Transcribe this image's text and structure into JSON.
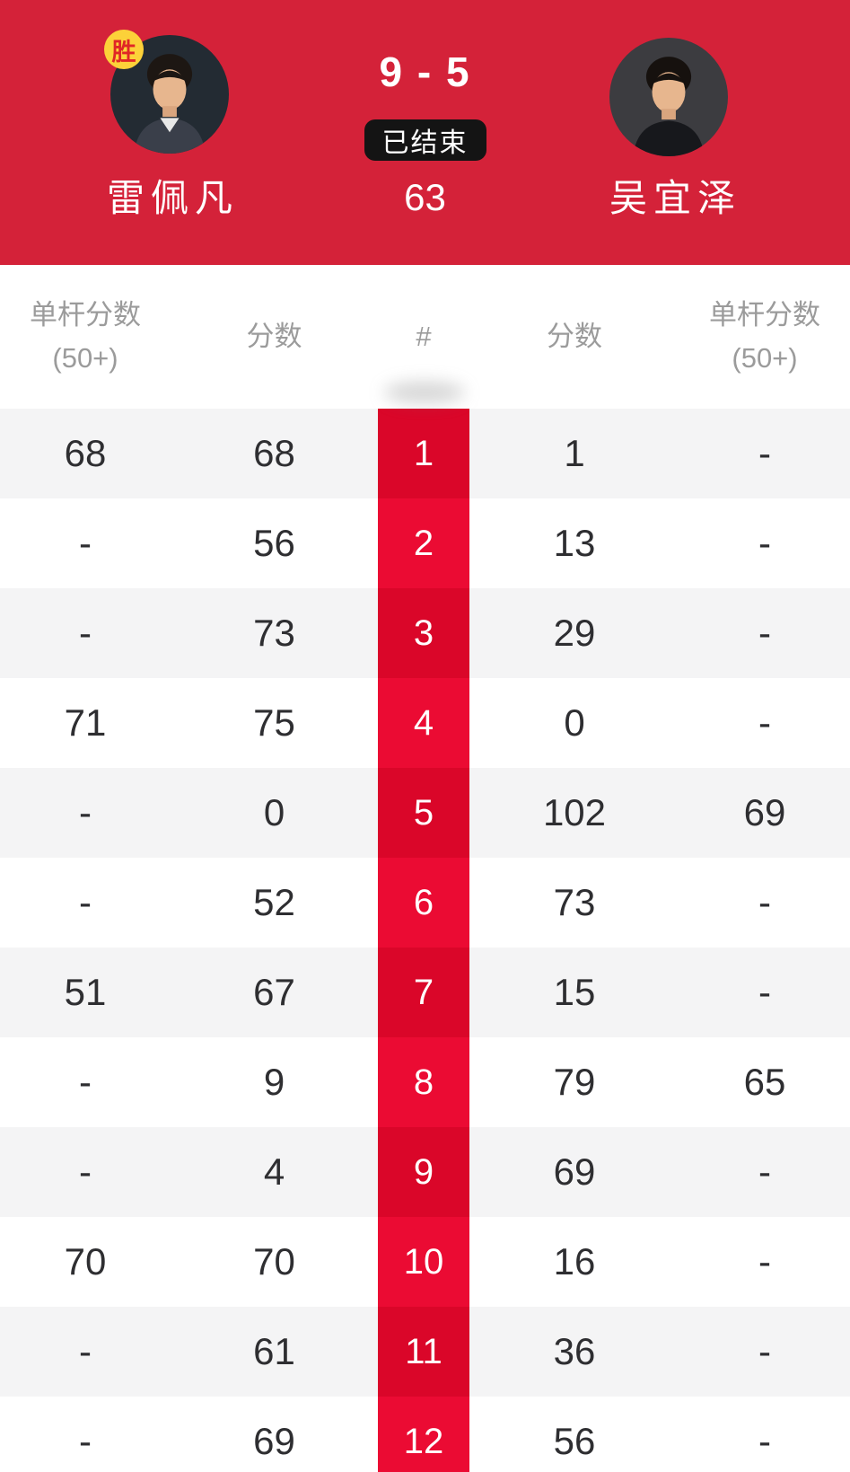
{
  "colors": {
    "banner-red": "#d42239",
    "col-red-bright": "#eb0b33",
    "col-red-dark": "#da0629",
    "row-gray": "#f4f4f5",
    "badge-yellow": "#fcd139",
    "badge-yellow-text": "#e02626",
    "status-black": "#141414",
    "header-gray": "#9b9b9b",
    "cell-text": "#2e2e31"
  },
  "header": {
    "score": "9 - 5",
    "status": "已结束",
    "sub_score": "63",
    "winner_badge": "胜",
    "left_player": {
      "name": "雷佩凡"
    },
    "right_player": {
      "name": "吴宜泽"
    }
  },
  "table": {
    "header": {
      "left_break_line1": "单杆分数",
      "left_break_line2": "(50+)",
      "left_score": "分数",
      "frame_no": "#",
      "right_score": "分数",
      "right_break_line1": "单杆分数",
      "right_break_line2": "(50+)"
    },
    "rows": [
      {
        "left_break": "68",
        "left_score": "68",
        "frame": "1",
        "right_score": "1",
        "right_break": "-"
      },
      {
        "left_break": "-",
        "left_score": "56",
        "frame": "2",
        "right_score": "13",
        "right_break": "-"
      },
      {
        "left_break": "-",
        "left_score": "73",
        "frame": "3",
        "right_score": "29",
        "right_break": "-"
      },
      {
        "left_break": "71",
        "left_score": "75",
        "frame": "4",
        "right_score": "0",
        "right_break": "-"
      },
      {
        "left_break": "-",
        "left_score": "0",
        "frame": "5",
        "right_score": "102",
        "right_break": "69"
      },
      {
        "left_break": "-",
        "left_score": "52",
        "frame": "6",
        "right_score": "73",
        "right_break": "-"
      },
      {
        "left_break": "51",
        "left_score": "67",
        "frame": "7",
        "right_score": "15",
        "right_break": "-"
      },
      {
        "left_break": "-",
        "left_score": "9",
        "frame": "8",
        "right_score": "79",
        "right_break": "65"
      },
      {
        "left_break": "-",
        "left_score": "4",
        "frame": "9",
        "right_score": "69",
        "right_break": "-"
      },
      {
        "left_break": "70",
        "left_score": "70",
        "frame": "10",
        "right_score": "16",
        "right_break": "-"
      },
      {
        "left_break": "-",
        "left_score": "61",
        "frame": "11",
        "right_score": "36",
        "right_break": "-"
      },
      {
        "left_break": "-",
        "left_score": "69",
        "frame": "12",
        "right_score": "56",
        "right_break": "-"
      }
    ]
  }
}
